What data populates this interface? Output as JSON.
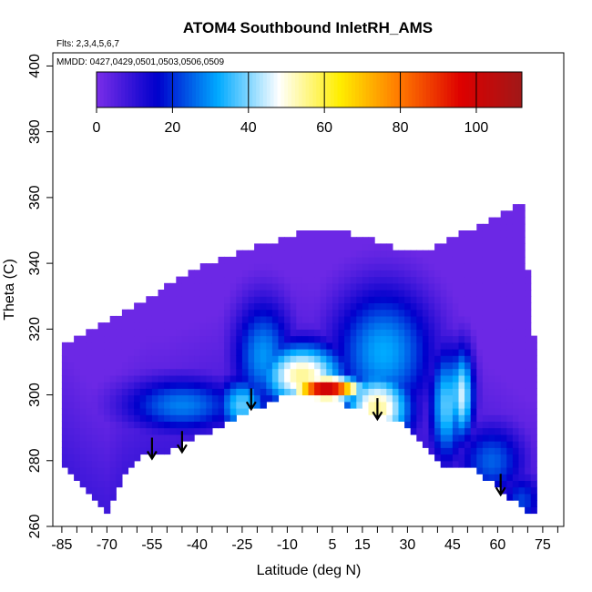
{
  "chart_data": {
    "type": "heatmap",
    "title": "ATOM4 Southbound InletRH_AMS",
    "flights_note": "Flts: 2,3,4,5,6,7",
    "dates_note": "MMDD: 0427,0429,0501,0503,0506,0509",
    "xlabel": "Latitude (deg N)",
    "ylabel": "Theta (C)",
    "xlim": [
      -88,
      82
    ],
    "ylim": [
      260,
      404
    ],
    "x_ticks": [
      "-85",
      "-70",
      "-55",
      "-40",
      "-25",
      "-10",
      "5",
      "15",
      "30",
      "45",
      "60",
      "75"
    ],
    "y_ticks": [
      "260",
      "280",
      "300",
      "320",
      "340",
      "360",
      "380",
      "400"
    ],
    "colorbar": {
      "range": [
        0,
        112
      ],
      "ticks": [
        "0",
        "20",
        "40",
        "60",
        "80",
        "100"
      ],
      "colors": [
        "#7b2ee8",
        "#0000cc",
        "#00aaff",
        "#ffffff",
        "#ffee00",
        "#ff7700",
        "#dd0000",
        "#a01818"
      ]
    },
    "surface_boundary": [
      [
        -84,
        278
      ],
      [
        -77,
        270
      ],
      [
        -70,
        264
      ],
      [
        -64,
        276
      ],
      [
        -57,
        282
      ],
      [
        -50,
        283
      ],
      [
        -43,
        286
      ],
      [
        -35,
        289
      ],
      [
        -27,
        293
      ],
      [
        -20,
        296
      ],
      [
        -10,
        301
      ],
      [
        0,
        299
      ],
      [
        10,
        297
      ],
      [
        18,
        295
      ],
      [
        27,
        292
      ],
      [
        35,
        286
      ],
      [
        43,
        277
      ],
      [
        52,
        278
      ],
      [
        60,
        272
      ],
      [
        70,
        264
      ]
    ],
    "top_boundary": [
      [
        -85,
        316
      ],
      [
        -78,
        318
      ],
      [
        -71,
        322
      ],
      [
        -62,
        326
      ],
      [
        -50,
        333
      ],
      [
        -38,
        339
      ],
      [
        -25,
        344
      ],
      [
        -15,
        346
      ],
      [
        -5,
        350
      ],
      [
        5,
        350
      ],
      [
        15,
        348
      ],
      [
        25,
        345
      ],
      [
        35,
        343
      ],
      [
        45,
        348
      ],
      [
        55,
        352
      ],
      [
        62,
        356
      ],
      [
        68,
        358
      ],
      [
        72,
        318
      ]
    ],
    "wet_features": [
      {
        "lat": -45,
        "theta": 297,
        "rh": 28,
        "sx": 14,
        "sy": 6
      },
      {
        "lat": -25,
        "theta": 297,
        "rh": 38,
        "sx": 6,
        "sy": 6
      },
      {
        "lat": -18,
        "theta": 312,
        "rh": 30,
        "sx": 7,
        "sy": 12
      },
      {
        "lat": -5,
        "theta": 306,
        "rh": 55,
        "sx": 10,
        "sy": 7
      },
      {
        "lat": 3,
        "theta": 302,
        "rh": 108,
        "sx": 8,
        "sy": 2.5
      },
      {
        "lat": 20,
        "theta": 296,
        "rh": 55,
        "sx": 8,
        "sy": 8
      },
      {
        "lat": 22,
        "theta": 313,
        "rh": 32,
        "sx": 12,
        "sy": 14
      },
      {
        "lat": 43,
        "theta": 297,
        "rh": 38,
        "sx": 4,
        "sy": 12
      },
      {
        "lat": 48,
        "theta": 300,
        "rh": 45,
        "sx": 3,
        "sy": 10
      },
      {
        "lat": 58,
        "theta": 280,
        "rh": 25,
        "sx": 8,
        "sy": 8
      },
      {
        "lat": 68,
        "theta": 268,
        "rh": 22,
        "sx": 5,
        "sy": 6
      }
    ],
    "profile_arrows": [
      {
        "lat": -55,
        "theta": 287
      },
      {
        "lat": -45,
        "theta": 289
      },
      {
        "lat": -22,
        "theta": 302
      },
      {
        "lat": 20,
        "theta": 299
      },
      {
        "lat": 61,
        "theta": 276
      }
    ]
  }
}
